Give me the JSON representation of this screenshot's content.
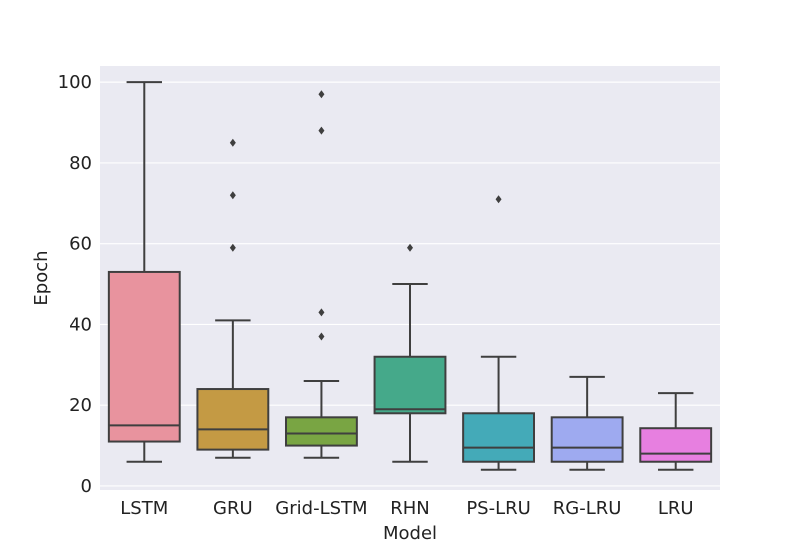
{
  "chart_data": {
    "type": "box",
    "xlabel": "Model",
    "ylabel": "Epoch",
    "ylim": [
      -1,
      104
    ],
    "yticks": [
      0,
      20,
      40,
      60,
      80,
      100
    ],
    "grid": true,
    "background": "#eaeaf2",
    "categories": [
      "LSTM",
      "GRU",
      "Grid-LSTM",
      "RHN",
      "PS-LRU",
      "RG-LRU",
      "LRU"
    ],
    "boxes": [
      {
        "category": "LSTM",
        "color": "#e8939e",
        "whisker_low": 6,
        "q1": 11,
        "median": 15,
        "q3": 53,
        "whisker_high": 100,
        "outliers": []
      },
      {
        "category": "GRU",
        "color": "#c49a44",
        "whisker_low": 7,
        "q1": 9,
        "median": 14,
        "q3": 24,
        "whisker_high": 41,
        "outliers": [
          59,
          72,
          85
        ]
      },
      {
        "category": "Grid-LSTM",
        "color": "#79a543",
        "whisker_low": 7,
        "q1": 10,
        "median": 13,
        "q3": 17,
        "whisker_high": 26,
        "outliers": [
          37,
          43,
          88,
          97
        ]
      },
      {
        "category": "RHN",
        "color": "#45a98a",
        "whisker_low": 6,
        "q1": 18,
        "median": 19,
        "q3": 32,
        "whisker_high": 50,
        "outliers": [
          59
        ]
      },
      {
        "category": "PS-LRU",
        "color": "#44aab8",
        "whisker_low": 4,
        "q1": 6,
        "median": 9.5,
        "q3": 18,
        "whisker_high": 32,
        "outliers": [
          71
        ]
      },
      {
        "category": "RG-LRU",
        "color": "#9eaaf0",
        "whisker_low": 4,
        "q1": 6,
        "median": 9.5,
        "q3": 17,
        "whisker_high": 27,
        "outliers": []
      },
      {
        "category": "LRU",
        "color": "#e77fe0",
        "whisker_low": 4,
        "q1": 6,
        "median": 8,
        "q3": 14.3,
        "whisker_high": 23,
        "outliers": []
      }
    ]
  }
}
